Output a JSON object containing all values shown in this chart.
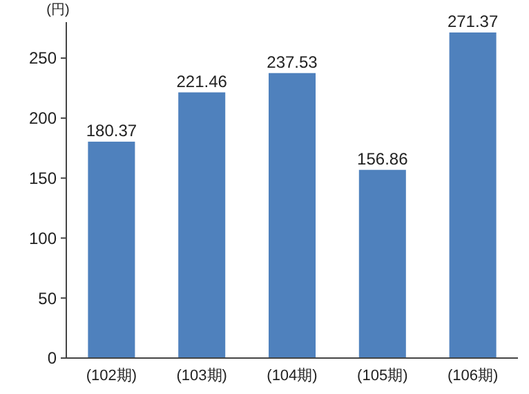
{
  "chart_data": {
    "type": "bar",
    "ylabel": "(円)",
    "categories": [
      "(102期)",
      "(103期)",
      "(104期)",
      "(105期)",
      "(106期)"
    ],
    "values": [
      180.37,
      221.46,
      237.53,
      156.86,
      271.37
    ],
    "color": "#4f81bd",
    "ylim": [
      0,
      280
    ],
    "yticks": [
      0,
      50,
      100,
      150,
      200,
      250
    ],
    "data_labels": true
  }
}
